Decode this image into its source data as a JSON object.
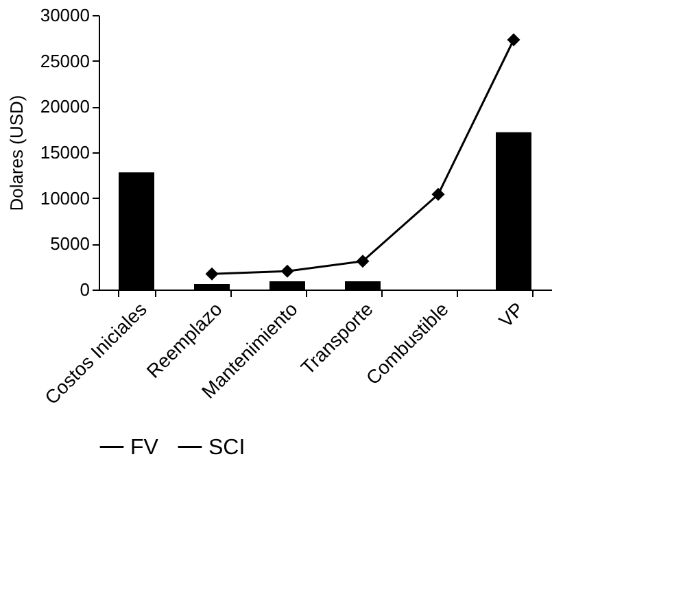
{
  "chart_data": {
    "type": "bar",
    "ylabel": "Dolares (USD)",
    "categories": [
      "Costos Iniciales",
      "Reemplazo",
      "Mantenimiento",
      "Transporte",
      "Combustible",
      "VP"
    ],
    "series": [
      {
        "name": "FV",
        "color": "#000000",
        "values": [
          12800,
          600,
          900,
          900,
          null,
          17200
        ]
      },
      {
        "name": "SCI",
        "type": "line",
        "color": "#000000",
        "marker": "diamond",
        "values": [
          null,
          1700,
          2000,
          3100,
          10400,
          27300
        ]
      }
    ],
    "ylim": [
      0,
      30000
    ],
    "yticks": [
      0,
      5000,
      10000,
      15000,
      20000,
      25000,
      30000
    ],
    "grid": false,
    "legend": "bottom"
  }
}
